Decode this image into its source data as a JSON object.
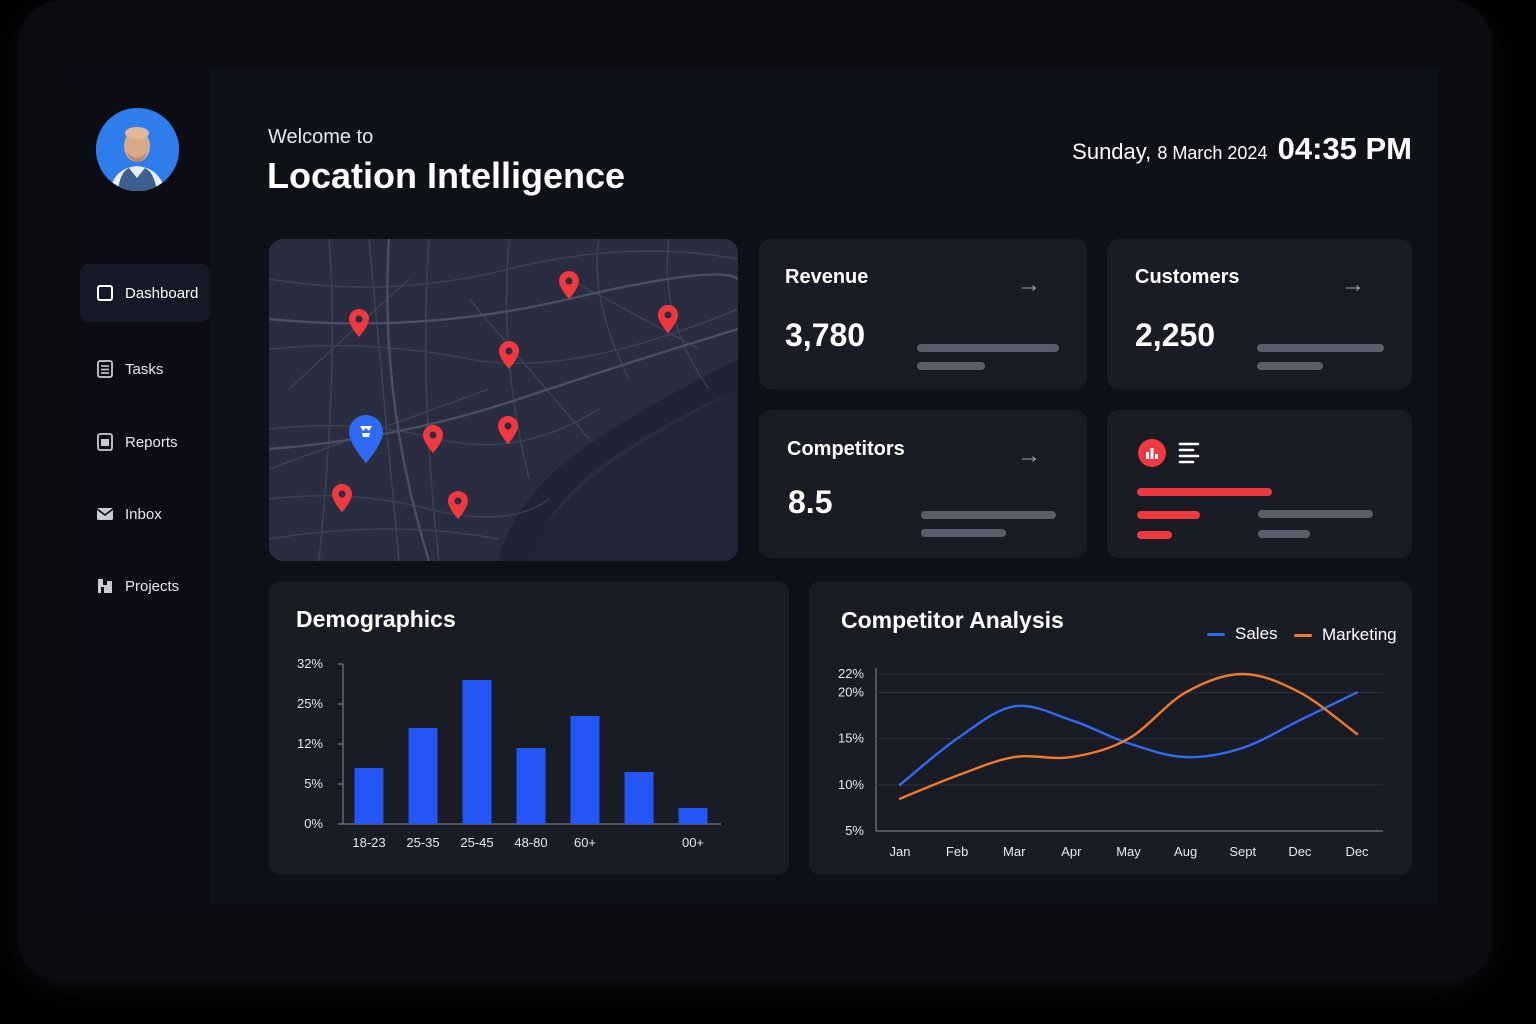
{
  "header": {
    "welcome": "Welcome to",
    "title": "Location Intelligence",
    "date_weekday": "Sunday,",
    "date_rest": "8 March 2024",
    "time": "04:35 PM"
  },
  "sidebar": {
    "items": [
      {
        "label": "Dashboard",
        "icon": "square-icon"
      },
      {
        "label": "Tasks",
        "icon": "list-icon"
      },
      {
        "label": "Reports",
        "icon": "report-icon"
      },
      {
        "label": "Inbox",
        "icon": "inbox-icon"
      },
      {
        "label": "Projects",
        "icon": "projects-icon"
      }
    ]
  },
  "stats": {
    "revenue": {
      "label": "Revenue",
      "value": "3,780"
    },
    "customers": {
      "label": "Customers",
      "value": "2,250"
    },
    "competitors": {
      "label": "Competitors",
      "value": "8.5"
    }
  },
  "colors": {
    "accent_blue": "#2456f5",
    "accent_red": "#f0383f",
    "sales": "#2f6bf2",
    "marketing": "#f07a2b"
  },
  "demographics": {
    "title": "Demographics"
  },
  "competitor_analysis": {
    "title": "Competitor Analysis",
    "legend": [
      "Sales",
      "Marketing"
    ]
  },
  "chart_data": [
    {
      "type": "bar",
      "title": "Demographics",
      "categories": [
        "18-23",
        "25-35",
        "25-45",
        "48-80",
        "60+",
        "",
        "00+"
      ],
      "values": [
        7,
        12,
        18,
        9.5,
        13.5,
        6.5,
        2
      ],
      "ytick_labels": [
        "0%",
        "5%",
        "12%",
        "25%",
        "32%"
      ],
      "ylim": [
        0,
        20
      ],
      "grid": false
    },
    {
      "type": "line",
      "title": "Competitor Analysis",
      "categories": [
        "Jan",
        "Feb",
        "Mar",
        "Apr",
        "May",
        "Aug",
        "Sept",
        "Dec",
        "Dec"
      ],
      "ytick_labels": [
        "5%",
        "10%",
        "15%",
        "20%",
        "22%"
      ],
      "series": [
        {
          "name": "Sales",
          "values": [
            10,
            15,
            18.5,
            17,
            14.5,
            13,
            14,
            17,
            20
          ]
        },
        {
          "name": "Marketing",
          "values": [
            8.5,
            11,
            13,
            13,
            15,
            20,
            22,
            20,
            15.5
          ]
        }
      ],
      "legend": "top-right",
      "grid": true
    }
  ]
}
